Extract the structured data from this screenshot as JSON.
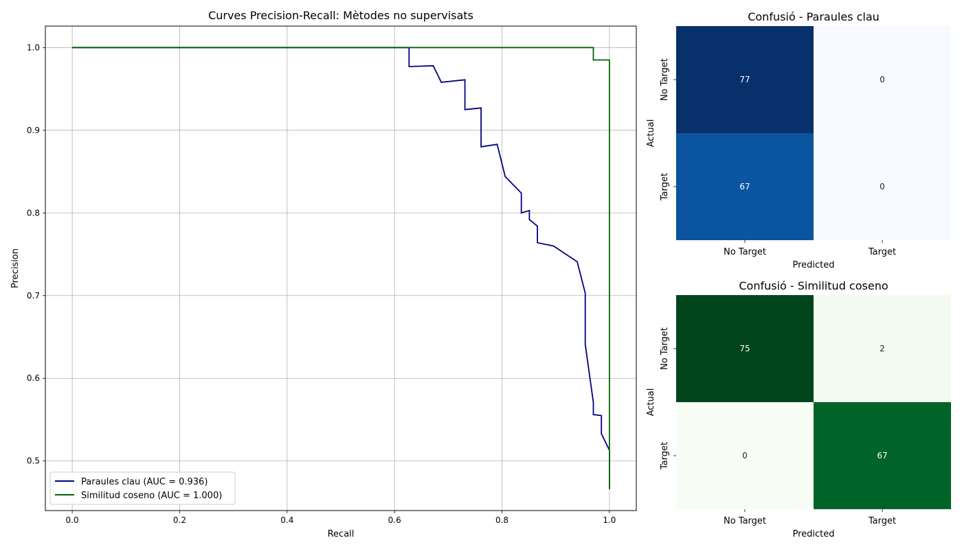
{
  "chart_data": [
    {
      "type": "line",
      "title": "Curves Precision-Recall: Mètodes no supervisats",
      "xlabel": "Recall",
      "ylabel": "Precision",
      "xlim": [
        -0.05,
        1.05
      ],
      "ylim": [
        0.44,
        1.026
      ],
      "xticks": [
        "0.0",
        "0.2",
        "0.4",
        "0.6",
        "0.8",
        "1.0"
      ],
      "yticks": [
        "0.5",
        "0.6",
        "0.7",
        "0.8",
        "0.9",
        "1.0"
      ],
      "grid": true,
      "legend": "lower-left",
      "series": [
        {
          "name": "Paraules clau (AUC = 0.936)",
          "color": "#000080",
          "points": [
            [
              0.0,
              1.0
            ],
            [
              0.627,
              1.0
            ],
            [
              0.627,
              0.977
            ],
            [
              0.672,
              0.978
            ],
            [
              0.687,
              0.958
            ],
            [
              0.731,
              0.961
            ],
            [
              0.731,
              0.925
            ],
            [
              0.761,
              0.927
            ],
            [
              0.761,
              0.88
            ],
            [
              0.791,
              0.883
            ],
            [
              0.806,
              0.844
            ],
            [
              0.836,
              0.824
            ],
            [
              0.836,
              0.8
            ],
            [
              0.851,
              0.803
            ],
            [
              0.851,
              0.792
            ],
            [
              0.866,
              0.784
            ],
            [
              0.866,
              0.764
            ],
            [
              0.896,
              0.76
            ],
            [
              0.94,
              0.741
            ],
            [
              0.955,
              0.703
            ],
            [
              0.955,
              0.641
            ],
            [
              0.97,
              0.571
            ],
            [
              0.97,
              0.556
            ],
            [
              0.985,
              0.555
            ],
            [
              0.985,
              0.533
            ],
            [
              1.0,
              0.513
            ],
            [
              1.0,
              0.466
            ]
          ]
        },
        {
          "name": "Similitud coseno (AUC = 1.000)",
          "color": "#006400",
          "points": [
            [
              0.0,
              1.0
            ],
            [
              0.97,
              1.0
            ],
            [
              0.97,
              0.985
            ],
            [
              1.0,
              0.985
            ],
            [
              1.0,
              0.466
            ]
          ]
        }
      ]
    },
    {
      "type": "heatmap",
      "title": "Confusió - Paraules clau",
      "xlabel": "Predicted",
      "ylabel": "Actual",
      "x_categories": [
        "No Target",
        "Target"
      ],
      "y_categories": [
        "No Target",
        "Target"
      ],
      "values": [
        [
          77,
          0
        ],
        [
          67,
          0
        ]
      ],
      "colormap": "Blues",
      "colors": [
        [
          "#08306b",
          "#f7fbff"
        ],
        [
          "#0a54a0",
          "#f7fbff"
        ]
      ],
      "text_colors": [
        [
          "#ffffff",
          "#262626"
        ],
        [
          "#ffffff",
          "#262626"
        ]
      ]
    },
    {
      "type": "heatmap",
      "title": "Confusió - Similitud coseno",
      "xlabel": "Predicted",
      "ylabel": "Actual",
      "x_categories": [
        "No Target",
        "Target"
      ],
      "y_categories": [
        "No Target",
        "Target"
      ],
      "values": [
        [
          75,
          2
        ],
        [
          0,
          67
        ]
      ],
      "colormap": "Greens",
      "colors": [
        [
          "#00441b",
          "#f3fbf0"
        ],
        [
          "#f7fcf5",
          "#006428"
        ]
      ],
      "text_colors": [
        [
          "#ffffff",
          "#262626"
        ],
        [
          "#262626",
          "#ffffff"
        ]
      ]
    }
  ]
}
